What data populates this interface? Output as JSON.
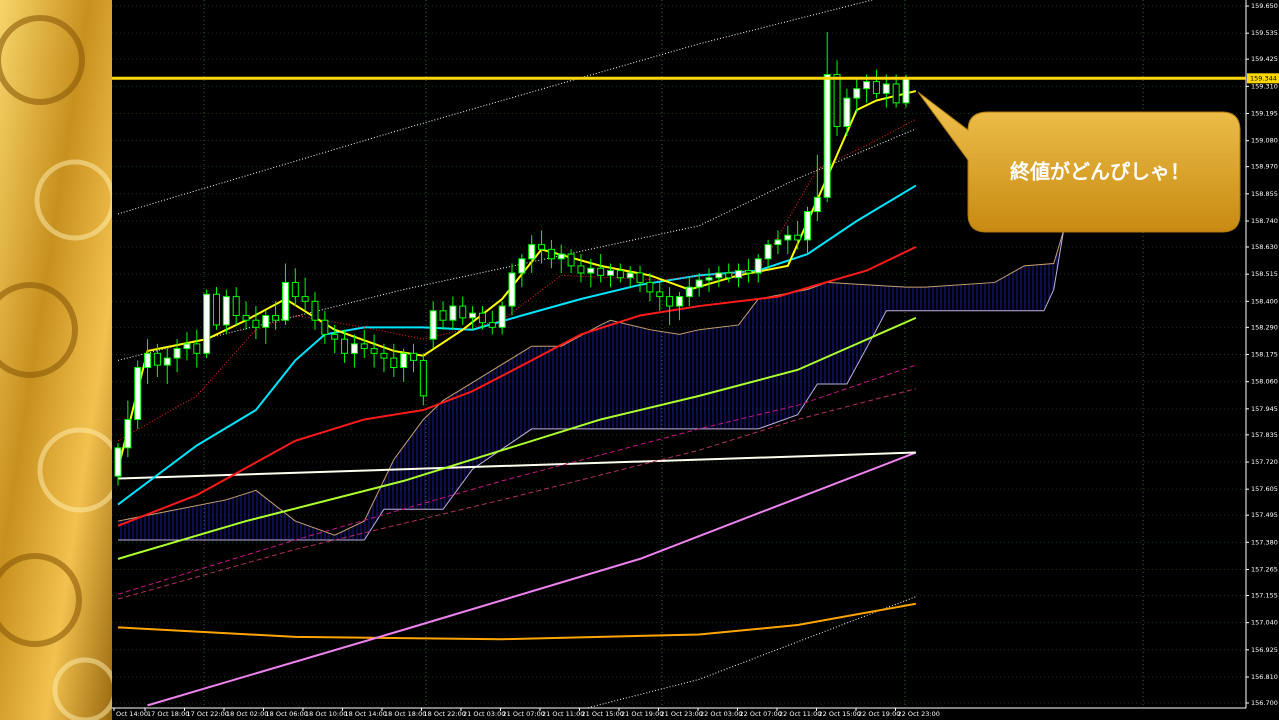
{
  "chart_data": {
    "type": "candlestick",
    "ylim": [
      156.7,
      159.65
    ],
    "yticks": [
      {
        "value": 159.65,
        "label": "159.650"
      },
      {
        "value": 159.535,
        "label": "159.535"
      },
      {
        "value": 159.425,
        "label": "159.425"
      },
      {
        "value": 159.31,
        "label": "159.310"
      },
      {
        "value": 159.195,
        "label": "159.195"
      },
      {
        "value": 159.08,
        "label": "159.080"
      },
      {
        "value": 158.97,
        "label": "158.970"
      },
      {
        "value": 158.855,
        "label": "158.855"
      },
      {
        "value": 158.74,
        "label": "158.740"
      },
      {
        "value": 158.63,
        "label": "158.630"
      },
      {
        "value": 158.515,
        "label": "158.515"
      },
      {
        "value": 158.4,
        "label": "158.400"
      },
      {
        "value": 158.29,
        "label": "158.290"
      },
      {
        "value": 158.175,
        "label": "158.175"
      },
      {
        "value": 158.06,
        "label": "158.060"
      },
      {
        "value": 157.945,
        "label": "157.945"
      },
      {
        "value": 157.835,
        "label": "157.835"
      },
      {
        "value": 157.72,
        "label": "157.720"
      },
      {
        "value": 157.605,
        "label": "157.605"
      },
      {
        "value": 157.495,
        "label": "157.495"
      },
      {
        "value": 157.38,
        "label": "157.380"
      },
      {
        "value": 157.265,
        "label": "157.265"
      },
      {
        "value": 157.155,
        "label": "157.155"
      },
      {
        "value": 157.04,
        "label": "157.040"
      },
      {
        "value": 156.925,
        "label": "156.925"
      },
      {
        "value": 156.81,
        "label": "156.810"
      },
      {
        "value": 156.7,
        "label": "156.700"
      }
    ],
    "grid": true,
    "x_labels": [
      "Oct 14:00",
      "17 Oct 18:00",
      "17 Oct 22:00",
      "18 Oct 02:00",
      "18 Oct 06:00",
      "18 Oct 10:00",
      "18 Oct 14:00",
      "18 Oct 18:00",
      "18 Oct 22:00",
      "21 Oct 03:00",
      "21 Oct 07:00",
      "21 Oct 11:00",
      "21 Oct 15:00",
      "21 Oct 19:00",
      "21 Oct 23:00",
      "22 Oct 03:00",
      "22 Oct 07:00",
      "22 Oct 11:00",
      "22 Oct 15:00",
      "22 Oct 19:00",
      "22 Oct 23:00"
    ],
    "up_color": "#ffffff",
    "down_color": "#000000",
    "wick_color": "#00ff00",
    "candles": [
      {
        "open": 157.66,
        "high": 157.8,
        "low": 157.62,
        "close": 157.78
      },
      {
        "open": 157.78,
        "high": 157.98,
        "low": 157.74,
        "close": 157.9
      },
      {
        "open": 157.9,
        "high": 158.15,
        "low": 157.86,
        "close": 158.12
      },
      {
        "open": 158.12,
        "high": 158.24,
        "low": 158.05,
        "close": 158.18
      },
      {
        "open": 158.18,
        "high": 158.22,
        "low": 158.08,
        "close": 158.13
      },
      {
        "open": 158.13,
        "high": 158.2,
        "low": 158.05,
        "close": 158.16
      },
      {
        "open": 158.16,
        "high": 158.24,
        "low": 158.1,
        "close": 158.2
      },
      {
        "open": 158.2,
        "high": 158.27,
        "low": 158.15,
        "close": 158.22
      },
      {
        "open": 158.22,
        "high": 158.28,
        "low": 158.12,
        "close": 158.18
      },
      {
        "open": 158.18,
        "high": 158.45,
        "low": 158.16,
        "close": 158.43
      },
      {
        "open": 158.43,
        "high": 158.46,
        "low": 158.28,
        "close": 158.3
      },
      {
        "open": 158.3,
        "high": 158.45,
        "low": 158.26,
        "close": 158.42
      },
      {
        "open": 158.42,
        "high": 158.46,
        "low": 158.3,
        "close": 158.34
      },
      {
        "open": 158.34,
        "high": 158.4,
        "low": 158.28,
        "close": 158.32
      },
      {
        "open": 158.32,
        "high": 158.38,
        "low": 158.24,
        "close": 158.29
      },
      {
        "open": 158.29,
        "high": 158.36,
        "low": 158.22,
        "close": 158.34
      },
      {
        "open": 158.34,
        "high": 158.4,
        "low": 158.28,
        "close": 158.32
      },
      {
        "open": 158.32,
        "high": 158.56,
        "low": 158.3,
        "close": 158.48
      },
      {
        "open": 158.48,
        "high": 158.54,
        "low": 158.38,
        "close": 158.42
      },
      {
        "open": 158.42,
        "high": 158.5,
        "low": 158.36,
        "close": 158.4
      },
      {
        "open": 158.4,
        "high": 158.44,
        "low": 158.28,
        "close": 158.32
      },
      {
        "open": 158.32,
        "high": 158.36,
        "low": 158.22,
        "close": 158.26
      },
      {
        "open": 158.26,
        "high": 158.3,
        "low": 158.18,
        "close": 158.24
      },
      {
        "open": 158.24,
        "high": 158.28,
        "low": 158.14,
        "close": 158.18
      },
      {
        "open": 158.18,
        "high": 158.26,
        "low": 158.12,
        "close": 158.22
      },
      {
        "open": 158.22,
        "high": 158.28,
        "low": 158.16,
        "close": 158.2
      },
      {
        "open": 158.2,
        "high": 158.26,
        "low": 158.12,
        "close": 158.18
      },
      {
        "open": 158.18,
        "high": 158.22,
        "low": 158.1,
        "close": 158.16
      },
      {
        "open": 158.16,
        "high": 158.22,
        "low": 158.08,
        "close": 158.12
      },
      {
        "open": 158.12,
        "high": 158.2,
        "low": 158.06,
        "close": 158.18
      },
      {
        "open": 158.18,
        "high": 158.22,
        "low": 158.1,
        "close": 158.15
      },
      {
        "open": 158.15,
        "high": 158.18,
        "low": 157.96,
        "close": 158.0
      },
      {
        "open": 158.24,
        "high": 158.4,
        "low": 158.2,
        "close": 158.36
      },
      {
        "open": 158.36,
        "high": 158.4,
        "low": 158.28,
        "close": 158.32
      },
      {
        "open": 158.32,
        "high": 158.42,
        "low": 158.28,
        "close": 158.38
      },
      {
        "open": 158.38,
        "high": 158.42,
        "low": 158.3,
        "close": 158.33
      },
      {
        "open": 158.33,
        "high": 158.38,
        "low": 158.28,
        "close": 158.35
      },
      {
        "open": 158.35,
        "high": 158.38,
        "low": 158.28,
        "close": 158.31
      },
      {
        "open": 158.31,
        "high": 158.36,
        "low": 158.26,
        "close": 158.29
      },
      {
        "open": 158.29,
        "high": 158.4,
        "low": 158.26,
        "close": 158.38
      },
      {
        "open": 158.38,
        "high": 158.56,
        "low": 158.34,
        "close": 158.52
      },
      {
        "open": 158.52,
        "high": 158.6,
        "low": 158.46,
        "close": 158.58
      },
      {
        "open": 158.58,
        "high": 158.68,
        "low": 158.52,
        "close": 158.64
      },
      {
        "open": 158.64,
        "high": 158.7,
        "low": 158.56,
        "close": 158.62
      },
      {
        "open": 158.62,
        "high": 158.66,
        "low": 158.54,
        "close": 158.58
      },
      {
        "open": 158.58,
        "high": 158.64,
        "low": 158.52,
        "close": 158.6
      },
      {
        "open": 158.6,
        "high": 158.62,
        "low": 158.52,
        "close": 158.55
      },
      {
        "open": 158.55,
        "high": 158.6,
        "low": 158.48,
        "close": 158.52
      },
      {
        "open": 158.52,
        "high": 158.58,
        "low": 158.46,
        "close": 158.54
      },
      {
        "open": 158.54,
        "high": 158.6,
        "low": 158.48,
        "close": 158.51
      },
      {
        "open": 158.51,
        "high": 158.56,
        "low": 158.46,
        "close": 158.53
      },
      {
        "open": 158.53,
        "high": 158.56,
        "low": 158.48,
        "close": 158.5
      },
      {
        "open": 158.5,
        "high": 158.55,
        "low": 158.46,
        "close": 158.52
      },
      {
        "open": 158.52,
        "high": 158.55,
        "low": 158.44,
        "close": 158.48
      },
      {
        "open": 158.48,
        "high": 158.52,
        "low": 158.4,
        "close": 158.44
      },
      {
        "open": 158.44,
        "high": 158.48,
        "low": 158.36,
        "close": 158.42
      },
      {
        "open": 158.42,
        "high": 158.46,
        "low": 158.3,
        "close": 158.38
      },
      {
        "open": 158.38,
        "high": 158.44,
        "low": 158.32,
        "close": 158.42
      },
      {
        "open": 158.42,
        "high": 158.5,
        "low": 158.38,
        "close": 158.46
      },
      {
        "open": 158.46,
        "high": 158.52,
        "low": 158.42,
        "close": 158.49
      },
      {
        "open": 158.49,
        "high": 158.54,
        "low": 158.44,
        "close": 158.5
      },
      {
        "open": 158.5,
        "high": 158.55,
        "low": 158.46,
        "close": 158.52
      },
      {
        "open": 158.52,
        "high": 158.56,
        "low": 158.48,
        "close": 158.5
      },
      {
        "open": 158.5,
        "high": 158.56,
        "low": 158.46,
        "close": 158.53
      },
      {
        "open": 158.53,
        "high": 158.58,
        "low": 158.48,
        "close": 158.52
      },
      {
        "open": 158.52,
        "high": 158.6,
        "low": 158.48,
        "close": 158.58
      },
      {
        "open": 158.58,
        "high": 158.66,
        "low": 158.54,
        "close": 158.64
      },
      {
        "open": 158.64,
        "high": 158.7,
        "low": 158.6,
        "close": 158.66
      },
      {
        "open": 158.66,
        "high": 158.72,
        "low": 158.6,
        "close": 158.68
      },
      {
        "open": 158.68,
        "high": 158.74,
        "low": 158.62,
        "close": 158.66
      },
      {
        "open": 158.66,
        "high": 158.8,
        "low": 158.6,
        "close": 158.78
      },
      {
        "open": 158.78,
        "high": 159.02,
        "low": 158.74,
        "close": 158.84
      },
      {
        "open": 158.84,
        "high": 159.54,
        "low": 158.82,
        "close": 159.36
      },
      {
        "open": 159.36,
        "high": 159.42,
        "low": 159.1,
        "close": 159.14
      },
      {
        "open": 159.14,
        "high": 159.3,
        "low": 159.1,
        "close": 159.26
      },
      {
        "open": 159.26,
        "high": 159.34,
        "low": 159.2,
        "close": 159.3
      },
      {
        "open": 159.3,
        "high": 159.36,
        "low": 159.24,
        "close": 159.33
      },
      {
        "open": 159.33,
        "high": 159.38,
        "low": 159.26,
        "close": 159.28
      },
      {
        "open": 159.28,
        "high": 159.36,
        "low": 159.22,
        "close": 159.32
      },
      {
        "open": 159.32,
        "high": 159.36,
        "low": 159.22,
        "close": 159.24
      },
      {
        "open": 159.24,
        "high": 159.36,
        "low": 159.22,
        "close": 159.344
      }
    ],
    "cloud": {
      "color": "#1a1a9a",
      "span_a": {
        "color": "#c8a070",
        "x": [
          0,
          11,
          14,
          18,
          22,
          25,
          28,
          31,
          33,
          42,
          45,
          49,
          50,
          54,
          57,
          59,
          63,
          65,
          70,
          72,
          80,
          82,
          89,
          92,
          95,
          96
        ],
        "values": [
          157.47,
          157.56,
          157.6,
          157.47,
          157.41,
          157.47,
          157.73,
          157.9,
          157.98,
          158.21,
          158.21,
          158.3,
          158.32,
          158.28,
          158.26,
          158.28,
          158.3,
          158.41,
          158.45,
          158.48,
          158.46,
          158.46,
          158.48,
          158.55,
          158.56,
          158.7
        ]
      },
      "span_b": {
        "color": "#c0b0e0",
        "x": [
          0,
          25,
          27,
          33,
          36,
          42,
          65,
          69,
          71,
          74,
          77,
          78,
          94,
          95,
          96
        ],
        "values": [
          157.39,
          157.39,
          157.52,
          157.52,
          157.69,
          157.86,
          157.86,
          157.92,
          158.05,
          158.05,
          158.28,
          158.36,
          158.36,
          158.45,
          158.7
        ]
      }
    },
    "series": [
      {
        "color": "#ffffff",
        "style": "dotted",
        "x": [
          0,
          29,
          59,
          77
        ],
        "values": [
          158.77,
          159.13,
          159.49,
          159.68
        ]
      },
      {
        "color": "#ffffff",
        "style": "dotted",
        "x": [
          0,
          29,
          59,
          69,
          81
        ],
        "values": [
          158.15,
          158.45,
          158.72,
          158.92,
          159.13
        ]
      },
      {
        "color": "#ffffff",
        "style": "dotted",
        "x": [
          43,
          59,
          81
        ],
        "values": [
          156.63,
          156.8,
          157.15
        ]
      },
      {
        "color": "#ffa500",
        "style": "solid",
        "x": [
          0,
          18,
          39,
          59,
          69,
          81
        ],
        "values": [
          157.02,
          156.98,
          156.97,
          156.99,
          157.03,
          157.12
        ]
      },
      {
        "color": "#ee82ee",
        "style": "solid",
        "x": [
          3,
          29,
          53,
          81
        ],
        "values": [
          156.69,
          157.01,
          157.31,
          157.76
        ]
      },
      {
        "color": "#fffff0",
        "style": "solid",
        "x": [
          0,
          81
        ],
        "values": [
          157.65,
          157.76
        ]
      },
      {
        "color": "#c71585",
        "style": "dashed",
        "x": [
          0,
          18,
          39,
          59,
          69,
          81
        ],
        "values": [
          157.16,
          157.39,
          157.64,
          157.86,
          157.96,
          158.13
        ]
      },
      {
        "color": "#b03060",
        "style": "dashed",
        "x": [
          0,
          18,
          39,
          59,
          69,
          81
        ],
        "values": [
          157.14,
          157.35,
          157.56,
          157.77,
          157.9,
          158.03
        ]
      },
      {
        "color": "#adff2f",
        "style": "solid",
        "x": [
          0,
          13,
          29,
          39,
          49,
          59,
          69,
          75,
          81
        ],
        "values": [
          157.31,
          157.47,
          157.64,
          157.77,
          157.9,
          158.0,
          158.11,
          158.22,
          158.33
        ]
      },
      {
        "color": "#ff1a1a",
        "style": "solid",
        "x": [
          0,
          8,
          18,
          25,
          31,
          36,
          42,
          47,
          53,
          59,
          67,
          71,
          76,
          81
        ],
        "values": [
          157.45,
          157.58,
          157.81,
          157.9,
          157.94,
          158.02,
          158.15,
          158.26,
          158.34,
          158.38,
          158.42,
          158.47,
          158.53,
          158.63
        ]
      },
      {
        "color": "#00e5ff",
        "style": "solid",
        "x": [
          0,
          8,
          14,
          18,
          21,
          25,
          31,
          36,
          41,
          47,
          53,
          59,
          65,
          70,
          75,
          81
        ],
        "values": [
          157.54,
          157.79,
          157.94,
          158.15,
          158.26,
          158.29,
          158.29,
          158.28,
          158.34,
          158.41,
          158.47,
          158.51,
          158.53,
          158.6,
          158.74,
          158.89
        ]
      },
      {
        "color": "#ff2020",
        "style": "dotted",
        "x": [
          0,
          8,
          14,
          18,
          25,
          31,
          39,
          45,
          55,
          65,
          71,
          76,
          81
        ],
        "values": [
          157.81,
          158.0,
          158.28,
          158.34,
          158.29,
          158.24,
          158.32,
          158.51,
          158.49,
          158.53,
          158.96,
          159.06,
          159.17
        ]
      },
      {
        "color": "#ffff00",
        "style": "solid",
        "x": [
          0,
          3,
          9,
          13,
          17,
          22,
          28,
          31,
          35,
          39,
          43,
          49,
          54,
          58,
          63,
          68,
          71,
          75,
          77,
          81
        ],
        "values": [
          157.69,
          158.19,
          158.24,
          158.32,
          158.41,
          158.28,
          158.19,
          158.17,
          158.28,
          158.41,
          158.62,
          158.55,
          158.51,
          158.45,
          158.51,
          158.55,
          158.83,
          159.21,
          159.25,
          159.29
        ]
      }
    ],
    "price_line": {
      "value": 159.344,
      "color": "#ffd700"
    },
    "annotation": "終値がどんぴしゃ！"
  }
}
